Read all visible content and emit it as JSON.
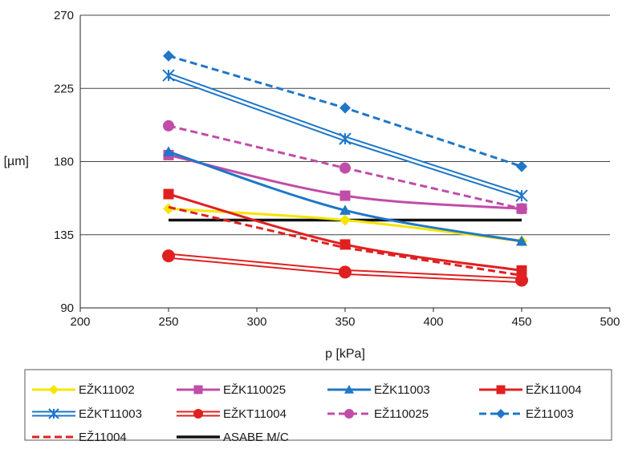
{
  "chart_data": {
    "type": "line",
    "xlabel": "p [kPa]",
    "ylabel": "[µm]",
    "xlim": [
      200,
      500
    ],
    "ylim": [
      90,
      270
    ],
    "xticks": [
      200,
      250,
      300,
      350,
      400,
      450,
      500
    ],
    "yticks": [
      90,
      135,
      180,
      225,
      270
    ],
    "grid": "horizontal",
    "legend_position": "bottom",
    "series": [
      {
        "name": "EŽK11002",
        "x": [
          250,
          350,
          450
        ],
        "y": [
          151,
          144,
          131
        ],
        "color": "#f5e400",
        "marker": "diamond",
        "line": "solid",
        "smooth": true
      },
      {
        "name": "EŽK110025",
        "x": [
          250,
          350,
          450
        ],
        "y": [
          184,
          159,
          151
        ],
        "color": "#c04da8",
        "marker": "square",
        "line": "solid",
        "smooth": true
      },
      {
        "name": "EŽK11003",
        "x": [
          250,
          350,
          450
        ],
        "y": [
          186,
          150,
          131
        ],
        "color": "#1f77c8",
        "marker": "triangle",
        "line": "solid",
        "smooth": true
      },
      {
        "name": "EŽK11004",
        "x": [
          250,
          350,
          450
        ],
        "y": [
          160,
          129,
          113
        ],
        "color": "#e02020",
        "marker": "square",
        "line": "solid",
        "smooth": true
      },
      {
        "name": "EŽKT11003",
        "x": [
          250,
          350,
          450
        ],
        "y": [
          233,
          194,
          159
        ],
        "color": "#1f77c8",
        "marker": "star",
        "line": "double",
        "smooth": false
      },
      {
        "name": "EŽKT11004",
        "x": [
          250,
          350,
          450
        ],
        "y": [
          122,
          112,
          107
        ],
        "color": "#e02020",
        "marker": "circle",
        "line": "double",
        "smooth": false
      },
      {
        "name": "EŽ110025",
        "x": [
          250,
          350,
          450
        ],
        "y": [
          202,
          176,
          151
        ],
        "color": "#c04da8",
        "marker": "circle",
        "line": "dashed",
        "smooth": false
      },
      {
        "name": "EŽ11003",
        "x": [
          250,
          350,
          450
        ],
        "y": [
          245,
          213,
          177
        ],
        "color": "#1f77c8",
        "marker": "diamond",
        "line": "dashed",
        "smooth": false
      },
      {
        "name": "EŽ11004",
        "x": [
          250,
          350,
          450
        ],
        "y": [
          152,
          127,
          110
        ],
        "color": "#e02020",
        "marker": "none",
        "line": "dashed",
        "smooth": false
      },
      {
        "name": "ASABE M/C",
        "x": [
          250,
          450
        ],
        "y": [
          144,
          144
        ],
        "color": "#111111",
        "marker": "none",
        "line": "solid",
        "smooth": false
      }
    ]
  }
}
